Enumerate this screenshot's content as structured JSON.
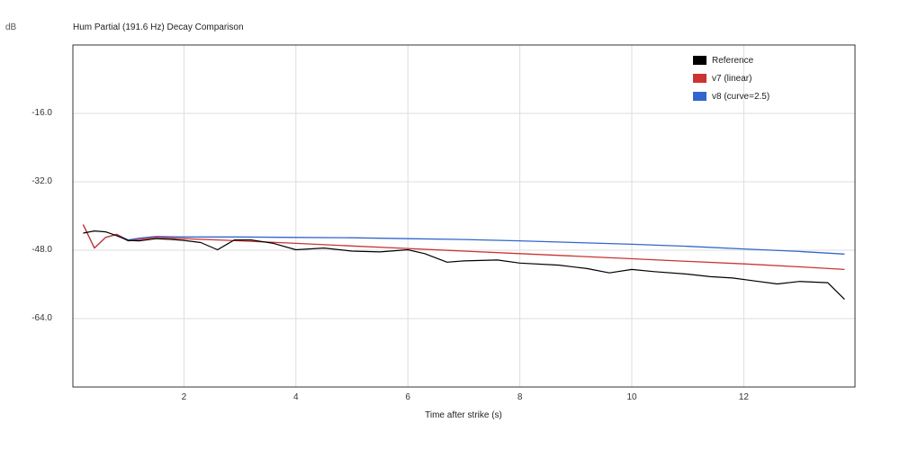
{
  "chart_data": {
    "type": "line",
    "title": "Hum Partial (191.6 Hz) Decay Comparison",
    "xlabel": "Time after strike (s)",
    "ylabel": "dB",
    "xlim": [
      0,
      14
    ],
    "ylim": [
      -80,
      0
    ],
    "grid": true,
    "legend_position": "top-right",
    "x_ticks": [
      "2",
      "4",
      "6",
      "8",
      "10",
      "12"
    ],
    "y_ticks": [
      "-16.0",
      "-32.0",
      "-48.0",
      "-64.0"
    ],
    "series": [
      {
        "name": "Reference",
        "color": "#000000",
        "x": [
          0.2,
          0.4,
          0.6,
          0.8,
          1.0,
          1.2,
          1.5,
          1.8,
          2.0,
          2.3,
          2.6,
          2.9,
          3.2,
          3.6,
          4.0,
          4.5,
          5.0,
          5.5,
          6.0,
          6.3,
          6.7,
          7.0,
          7.6,
          8.0,
          8.7,
          9.2,
          9.6,
          10.0,
          10.4,
          11.0,
          11.4,
          11.8,
          12.2,
          12.6,
          13.0,
          13.5,
          13.8
        ],
        "values": [
          -44.0,
          -43.5,
          -43.7,
          -44.6,
          -45.7,
          -45.8,
          -45.3,
          -45.5,
          -45.7,
          -46.2,
          -47.9,
          -45.6,
          -45.6,
          -46.4,
          -47.9,
          -47.5,
          -48.2,
          -48.4,
          -47.9,
          -48.8,
          -50.8,
          -50.5,
          -50.3,
          -51.0,
          -51.5,
          -52.3,
          -53.3,
          -52.5,
          -53.0,
          -53.6,
          -54.2,
          -54.5,
          -55.2,
          -55.9,
          -55.3,
          -55.6,
          -59.5
        ]
      },
      {
        "name": "v7 (linear)",
        "color": "#cc3333",
        "x": [
          0.2,
          0.4,
          0.6,
          0.8,
          1.0,
          1.2,
          1.5,
          2.0,
          3.0,
          4.0,
          5.0,
          6.0,
          7.0,
          8.0,
          9.0,
          10.0,
          11.0,
          12.0,
          13.0,
          13.8
        ],
        "values": [
          -42.0,
          -47.5,
          -45.0,
          -44.3,
          -45.8,
          -45.5,
          -45.0,
          -45.3,
          -45.8,
          -46.4,
          -47.0,
          -47.6,
          -48.2,
          -48.8,
          -49.4,
          -50.0,
          -50.6,
          -51.2,
          -51.9,
          -52.5
        ]
      },
      {
        "name": "v8 (curve=2.5)",
        "color": "#3366cc",
        "x": [
          0.2,
          0.4,
          0.6,
          0.8,
          1.0,
          1.2,
          1.5,
          2.0,
          3.0,
          4.0,
          5.0,
          6.0,
          7.0,
          8.0,
          9.0,
          10.0,
          11.0,
          12.0,
          13.0,
          13.8
        ],
        "values": [
          -42.0,
          -47.5,
          -45.0,
          -44.3,
          -45.6,
          -45.2,
          -44.8,
          -44.9,
          -44.9,
          -45.0,
          -45.1,
          -45.3,
          -45.5,
          -45.8,
          -46.2,
          -46.6,
          -47.1,
          -47.7,
          -48.3,
          -48.9
        ]
      }
    ]
  }
}
